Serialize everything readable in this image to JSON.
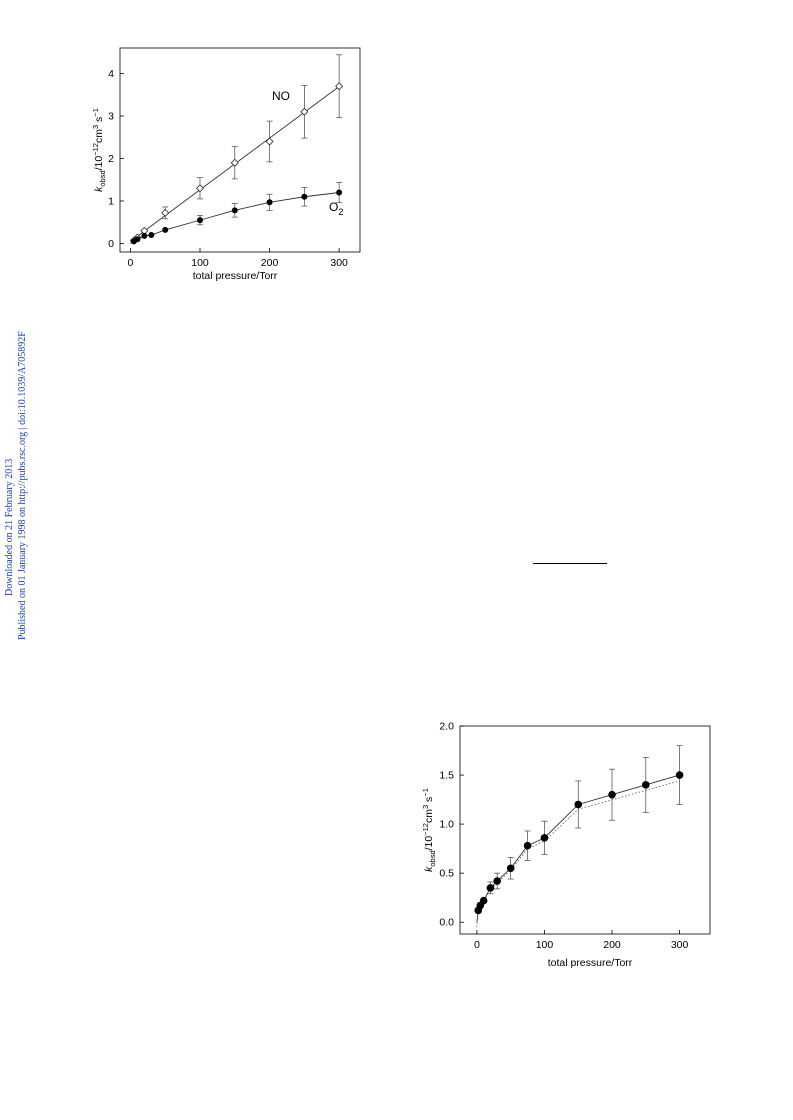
{
  "margin_text": {
    "line1": "Downloaded on 21 February 2013",
    "line2": "Published on 01 January 1998 on http://pubs.rsc.org | doi:10.1039/A705892F"
  },
  "chart_data": [
    {
      "type": "scatter",
      "xlabel": "total pressure/Torr",
      "ylabel_main": "k",
      "ylabel_sub": "obsd",
      "ylabel_unit1": "/10",
      "ylabel_exp1": "−12",
      "ylabel_unit2": "cm",
      "ylabel_exp2": "3",
      "ylabel_unit3": " s",
      "ylabel_exp3": "−1",
      "xlim": [
        -15,
        330
      ],
      "ylim": [
        -0.2,
        4.6
      ],
      "xticks": [
        0,
        100,
        200,
        300
      ],
      "yticks": [
        0,
        1,
        2,
        3,
        4
      ],
      "grid": false,
      "series": [
        {
          "name": "NO",
          "marker": "open-diamond",
          "fit": "linear",
          "points": [
            {
              "x": 5,
              "y": 0.07,
              "err": 0
            },
            {
              "x": 10,
              "y": 0.14,
              "err": 0
            },
            {
              "x": 20,
              "y": 0.3,
              "err": 0
            },
            {
              "x": 50,
              "y": 0.72,
              "err": 0.14
            },
            {
              "x": 100,
              "y": 1.3,
              "err": 0.25
            },
            {
              "x": 150,
              "y": 1.9,
              "err": 0.38
            },
            {
              "x": 200,
              "y": 2.4,
              "err": 0.48
            },
            {
              "x": 250,
              "y": 3.1,
              "err": 0.62
            },
            {
              "x": 300,
              "y": 3.7,
              "err": 0.74
            }
          ]
        },
        {
          "name": "O",
          "name_sub": "2",
          "marker": "filled-circle",
          "fit": "curve",
          "points": [
            {
              "x": 5,
              "y": 0.05,
              "err": 0
            },
            {
              "x": 10,
              "y": 0.1,
              "err": 0
            },
            {
              "x": 20,
              "y": 0.18,
              "err": 0
            },
            {
              "x": 30,
              "y": 0.2,
              "err": 0
            },
            {
              "x": 50,
              "y": 0.32,
              "err": 0
            },
            {
              "x": 100,
              "y": 0.55,
              "err": 0.11
            },
            {
              "x": 150,
              "y": 0.78,
              "err": 0.16
            },
            {
              "x": 200,
              "y": 0.97,
              "err": 0.19
            },
            {
              "x": 250,
              "y": 1.1,
              "err": 0.22
            },
            {
              "x": 300,
              "y": 1.2,
              "err": 0.24
            }
          ]
        }
      ]
    },
    {
      "type": "scatter",
      "xlabel": "total pressure/Torr",
      "ylabel_main": "k",
      "ylabel_sub": "obsd",
      "ylabel_unit1": "/10",
      "ylabel_exp1": "−12",
      "ylabel_unit2": "cm",
      "ylabel_exp2": "3",
      "ylabel_unit3": " s",
      "ylabel_exp3": "−1",
      "xlim": [
        -25,
        345
      ],
      "ylim": [
        -0.12,
        2.0
      ],
      "xticks": [
        0,
        100,
        200,
        300
      ],
      "yticks": [
        0.0,
        0.5,
        1.0,
        1.5,
        2.0
      ],
      "ytick_labels": [
        "0.0",
        "0.5",
        "1.0",
        "1.5",
        "2.0"
      ],
      "grid": false,
      "series": [
        {
          "marker": "filled-circle",
          "fit": "curve+dotted",
          "points": [
            {
              "x": 2,
              "y": 0.12,
              "err": 0
            },
            {
              "x": 5,
              "y": 0.17,
              "err": 0
            },
            {
              "x": 10,
              "y": 0.22,
              "err": 0
            },
            {
              "x": 20,
              "y": 0.35,
              "err": 0.06
            },
            {
              "x": 30,
              "y": 0.42,
              "err": 0.08
            },
            {
              "x": 50,
              "y": 0.55,
              "err": 0.11
            },
            {
              "x": 75,
              "y": 0.78,
              "err": 0.15
            },
            {
              "x": 100,
              "y": 0.86,
              "err": 0.17
            },
            {
              "x": 150,
              "y": 1.2,
              "err": 0.24
            },
            {
              "x": 200,
              "y": 1.3,
              "err": 0.26
            },
            {
              "x": 250,
              "y": 1.4,
              "err": 0.28
            },
            {
              "x": 300,
              "y": 1.5,
              "err": 0.3
            }
          ]
        }
      ]
    }
  ]
}
